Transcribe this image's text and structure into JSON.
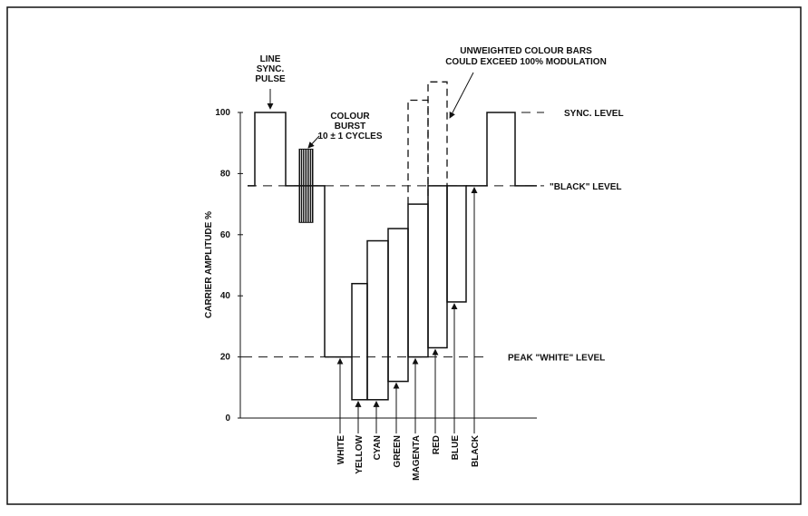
{
  "axis": {
    "label": "CARRIER AMPLITUDE %",
    "ticks": [
      0,
      20,
      40,
      60,
      80,
      100
    ]
  },
  "levels": {
    "sync": 100,
    "black": 76,
    "peak_white": 20
  },
  "burst": {
    "low": 64,
    "high": 88
  },
  "annotations": {
    "sync_pulse": [
      "LINE",
      "SYNC.",
      "PULSE"
    ],
    "burst": [
      "COLOUR",
      "BURST",
      "10 ± 1 CYCLES"
    ],
    "unweighted": [
      "UNWEIGHTED COLOUR BARS",
      "COULD EXCEED 100% MODULATION"
    ],
    "sync_level": "SYNC. LEVEL",
    "black_level": "\"BLACK\" LEVEL",
    "white_level": "PEAK \"WHITE\" LEVEL"
  },
  "bars": [
    {
      "label": "WHITE",
      "low": 20,
      "high": 20
    },
    {
      "label": "YELLOW",
      "low": 6,
      "high": 44
    },
    {
      "label": "CYAN",
      "low": 6,
      "high": 58
    },
    {
      "label": "GREEN",
      "low": 12,
      "high": 62
    },
    {
      "label": "MAGENTA",
      "low": 20,
      "high": 70,
      "unweighted_high": 104
    },
    {
      "label": "RED",
      "low": 23,
      "high": 76,
      "unweighted_high": 110
    },
    {
      "label": "BLUE",
      "low": 38,
      "high": 76
    },
    {
      "label": "BLACK",
      "low": 76,
      "high": 76
    }
  ]
}
